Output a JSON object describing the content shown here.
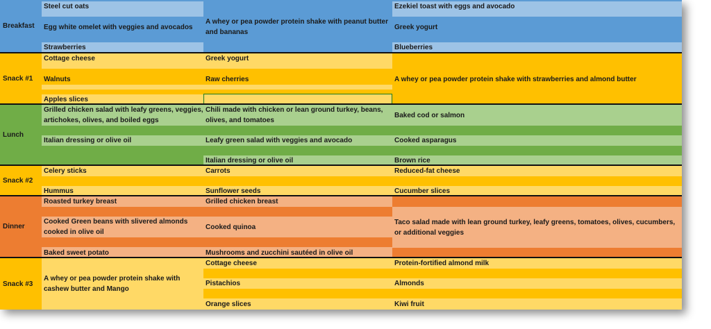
{
  "colors": {
    "breakfast_dark": "#5b9bd5",
    "breakfast_light": "#9dc3e6",
    "snack_dark": "#ffc000",
    "snack_light": "#ffd966",
    "lunch_dark": "#70ad47",
    "lunch_light": "#a9d08e",
    "dinner_dark": "#ed7d31",
    "dinner_light": "#f4b183",
    "selection_border": "#1e7c1e"
  },
  "rows": [
    {
      "label": "Breakfast",
      "c1": [
        "Steel cut oats",
        "Egg white omelet with veggies and avocados",
        "Strawberries"
      ],
      "c2": [
        "A whey or pea powder protein shake with peanut butter and bananas"
      ],
      "c3": [
        "Ezekiel toast with eggs and avocado",
        "Greek yogurt",
        "Blueberries"
      ]
    },
    {
      "label": "Snack #1",
      "c1": [
        "Cottage cheese",
        "Walnuts",
        "Apples slices"
      ],
      "c2": [
        "Greek yogurt",
        "Raw cherries",
        ""
      ],
      "c3": [
        "A whey or pea powder protein shake with strawberries and almond butter"
      ]
    },
    {
      "label": "Lunch",
      "c1": [
        "Grilled chicken salad with leafy greens, veggies, artichokes, olives, and boiled eggs",
        "Italian dressing or olive oil"
      ],
      "c2": [
        "Chili made with chicken or lean ground turkey, beans, olives, and tomatoes",
        "Leafy green salad with veggies and avocado",
        "Italian dressing or olive oil"
      ],
      "c3": [
        "Baked cod or salmon",
        "Cooked asparagus",
        "Brown rice"
      ]
    },
    {
      "label": "Snack #2",
      "c1": [
        "Celery sticks",
        "Hummus"
      ],
      "c2": [
        "Carrots",
        "Sunflower seeds"
      ],
      "c3": [
        "Reduced-fat cheese",
        "Cucumber slices"
      ]
    },
    {
      "label": "Dinner",
      "c1": [
        "Roasted turkey breast",
        "Cooked Green beans with slivered almonds cooked in olive oil",
        "Baked sweet potato"
      ],
      "c2": [
        "Grilled chicken breast",
        "Cooked quinoa",
        "Mushrooms and zucchini sautéed in olive oil"
      ],
      "c3": [
        "Taco salad made with lean ground turkey, leafy greens, tomatoes, olives, cucumbers, or additional veggies"
      ]
    },
    {
      "label": "Snack #3",
      "c1": [
        "A whey or pea powder protein shake with cashew butter and Mango"
      ],
      "c2": [
        "Cottage cheese",
        "Pistachios",
        "Orange slices"
      ],
      "c3": [
        "Protein-fortified almond milk",
        "Almonds",
        "Kiwi fruit"
      ]
    }
  ]
}
